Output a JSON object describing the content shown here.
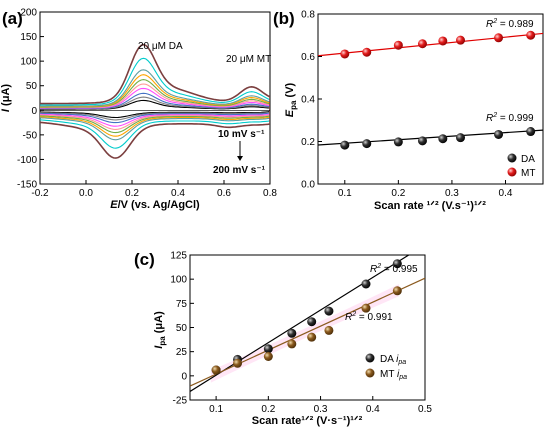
{
  "chart_data": [
    {
      "panel": "(a)",
      "type": "line",
      "xlabel_italic": "E",
      "xlabel_rest": "/V (vs. Ag/AgCl)",
      "ylabel_italic": "I",
      "ylabel_rest": " (μA)",
      "xlim": [
        -0.2,
        0.8
      ],
      "ylim": [
        -150,
        200
      ],
      "xticks": [
        "-0.2",
        "0.0",
        "0.2",
        "0.4",
        "0.6",
        "0.8"
      ],
      "yticks": [
        "-150",
        "-100",
        "-50",
        "0",
        "50",
        "100",
        "150",
        "200"
      ],
      "annotations": [
        "20 μM DA",
        "20 μM MT",
        "10 mV s⁻¹",
        "200 mV s⁻¹"
      ],
      "series_colors": [
        "#000000",
        "#7f7f7f",
        "#4472c4",
        "#ff4dff",
        "#ff9999",
        "#70ad47",
        "#ffa500",
        "#5f9ea0",
        "#00cccc",
        "#7b3f3f"
      ],
      "anodic_peak_current_DA": [
        18,
        24,
        31,
        40,
        48,
        56,
        65,
        74,
        95,
        120
      ]
    },
    {
      "panel": "(b)",
      "type": "scatter",
      "ylabel_italic": "E",
      "ylabel_sub": "pa",
      "ylabel_rest": " (V)",
      "xlabel": "Scan rate ¹ᐟ² (V.s⁻¹)¹ᐟ²",
      "xlim": [
        0.05,
        0.47
      ],
      "ylim": [
        0.0,
        0.8
      ],
      "xticks": [
        "0.1",
        "0.2",
        "0.3",
        "0.4"
      ],
      "yticks": [
        "0.0",
        "0.2",
        "0.4",
        "0.6",
        "0.8"
      ],
      "x": [
        0.1,
        0.141,
        0.2,
        0.245,
        0.283,
        0.316,
        0.387,
        0.447
      ],
      "series": [
        {
          "name": "DA",
          "color": "#000000",
          "values": [
            0.183,
            0.19,
            0.198,
            0.203,
            0.213,
            0.218,
            0.233,
            0.247
          ],
          "fit": [
            0.175,
            0.167
          ],
          "r2": "0.999"
        },
        {
          "name": "MT",
          "color": "#e00000",
          "values": [
            0.612,
            0.62,
            0.653,
            0.66,
            0.673,
            0.677,
            0.688,
            0.7
          ],
          "fit": [
            0.591,
            0.25
          ],
          "r2": "0.989"
        }
      ],
      "r2_label": "R",
      "r2_sup": "2",
      "legend_position": "bottom-right"
    },
    {
      "panel": "(c)",
      "type": "scatter",
      "ylabel_italic": "I",
      "ylabel_sub": "pa",
      "ylabel_rest": " (μA)",
      "xlabel": "Scan rate¹ᐟ² (V·s⁻¹)¹ᐟ²",
      "xlim": [
        0.05,
        0.5
      ],
      "ylim": [
        -25,
        125
      ],
      "xticks": [
        "0.1",
        "0.2",
        "0.3",
        "0.4",
        "0.5"
      ],
      "yticks": [
        "-25",
        "0",
        "25",
        "50",
        "75",
        "100",
        "125"
      ],
      "x": [
        0.1,
        0.141,
        0.2,
        0.245,
        0.283,
        0.316,
        0.387,
        0.447
      ],
      "series": [
        {
          "name": "DA",
          "sub": "pa",
          "color": "#000000",
          "values": [
            6,
            17,
            28,
            44,
            56,
            67,
            95,
            116
          ],
          "fit": [
            -33,
            337
          ],
          "r2": "0.995"
        },
        {
          "name": "MT",
          "sub": "pa",
          "color": "#8b5a1e",
          "values": [
            6,
            13,
            20,
            33,
            40,
            47,
            70,
            88
          ],
          "fit": [
            -23,
            248
          ],
          "r2": "0.991"
        }
      ],
      "r2_label": "R",
      "r2_sup": "2",
      "legend_position": "bottom-right"
    }
  ]
}
